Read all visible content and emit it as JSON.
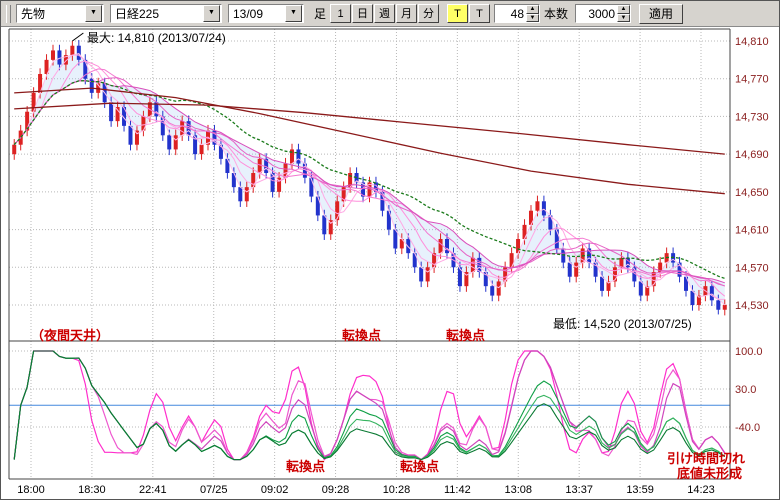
{
  "toolbar": {
    "instrument_type": "先物",
    "symbol": "日経225",
    "contract_month": "13/09",
    "bar_type_label": "足",
    "period_buttons": [
      "1",
      "日",
      "週",
      "月",
      "分"
    ],
    "tick_toggle": "T",
    "tick_label": "T",
    "tick_interval": "48",
    "bars_label": "本数",
    "bars_count": "3000",
    "apply_label": "適用"
  },
  "annotations": {
    "max_label": "最大: 14,810 (2013/07/24)",
    "min_label": "最低: 14,520 (2013/07/25)",
    "night_ceiling": "（夜間天井）",
    "turning_point_1": "転換点",
    "turning_point_2": "転換点",
    "osc_turning_point_1": "転換点",
    "osc_turning_point_2": "転換点",
    "close_timeout": "引け時間切れ",
    "no_bottom": "底値未形成"
  },
  "colors": {
    "up_candle": "#dd2222",
    "down_candle": "#2233cc",
    "ma_pink": [
      "#ffc2ec",
      "#ffa9e4",
      "#ff8fdb",
      "#f478d1",
      "#e663c6",
      "#d94fbc"
    ],
    "ma_green": "#1a7a1a",
    "ma_dark_red": "#8b1a1a",
    "osc_pink": [
      "#ff2ecc",
      "#ee58cf",
      "#cf46bd"
    ],
    "osc_green": [
      "#0f9f46",
      "#35b35f",
      "#0a7a33"
    ],
    "zero_line": "#4488dd",
    "grid": "#b8b8b8",
    "axis_text": "#8b2020",
    "annotation_red": "#cc0000"
  },
  "chart_data": {
    "type": "candlestick",
    "price_axis": {
      "labels": [
        "14,810",
        "14,770",
        "14,730",
        "14,690",
        "14,650",
        "14,610",
        "14,570",
        "14,530"
      ],
      "values": [
        14810,
        14770,
        14730,
        14690,
        14650,
        14610,
        14570,
        14530
      ]
    },
    "osc_axis": {
      "labels": [
        "100.0",
        "30.0",
        "-40.0"
      ],
      "values": [
        100,
        30,
        -40
      ]
    },
    "time_labels": [
      "18:00",
      "18:30",
      "22:41",
      "07/25",
      "09:02",
      "09:28",
      "10:28",
      "11:42",
      "13:08",
      "13:37",
      "13:59",
      "14:23"
    ],
    "max_point": {
      "value": 14810,
      "date": "2013/07/24"
    },
    "min_point": {
      "value": 14520,
      "date": "2013/07/25"
    },
    "first_open": 14690,
    "wick": 6,
    "peak_index": 9,
    "trough_index": 109,
    "closes": [
      14700,
      14715,
      14735,
      14755,
      14775,
      14790,
      14800,
      14785,
      14795,
      14805,
      14790,
      14770,
      14755,
      14765,
      14745,
      14725,
      14740,
      14720,
      14700,
      14715,
      14730,
      14745,
      14730,
      14710,
      14695,
      14710,
      14725,
      14710,
      14690,
      14700,
      14715,
      14700,
      14685,
      14670,
      14655,
      14640,
      14655,
      14670,
      14685,
      14670,
      14650,
      14665,
      14680,
      14695,
      14680,
      14665,
      14645,
      14625,
      14605,
      14620,
      14640,
      14655,
      14670,
      14660,
      14645,
      14660,
      14650,
      14630,
      14610,
      14590,
      14600,
      14585,
      14570,
      14555,
      14570,
      14585,
      14600,
      14585,
      14570,
      14550,
      14565,
      14580,
      14565,
      14550,
      14540,
      14555,
      14570,
      14585,
      14600,
      14615,
      14630,
      14640,
      14625,
      14610,
      14590,
      14575,
      14560,
      14575,
      14590,
      14575,
      14560,
      14545,
      14555,
      14570,
      14580,
      14570,
      14555,
      14540,
      14550,
      14565,
      14575,
      14585,
      14575,
      14560,
      14545,
      14530,
      14540,
      14550,
      14535,
      14525,
      14530
    ],
    "ma_windows_fast": [
      3,
      5,
      8,
      11,
      14,
      17
    ],
    "ma_window_mid": 26,
    "long_ma_lines": [
      {
        "points": [
          [
            0,
            14738
          ],
          [
            15,
            14744
          ],
          [
            30,
            14742
          ],
          [
            45,
            14734
          ],
          [
            60,
            14724
          ],
          [
            78,
            14712
          ],
          [
            95,
            14700
          ],
          [
            110,
            14690
          ]
        ]
      },
      {
        "points": [
          [
            0,
            14755
          ],
          [
            12,
            14760
          ],
          [
            25,
            14750
          ],
          [
            38,
            14733
          ],
          [
            52,
            14712
          ],
          [
            66,
            14691
          ],
          [
            80,
            14672
          ],
          [
            95,
            14658
          ],
          [
            110,
            14648
          ]
        ]
      }
    ],
    "osc_windows_fast": [
      9,
      13,
      18
    ],
    "osc_windows_slow": [
      30,
      40,
      55
    ]
  }
}
